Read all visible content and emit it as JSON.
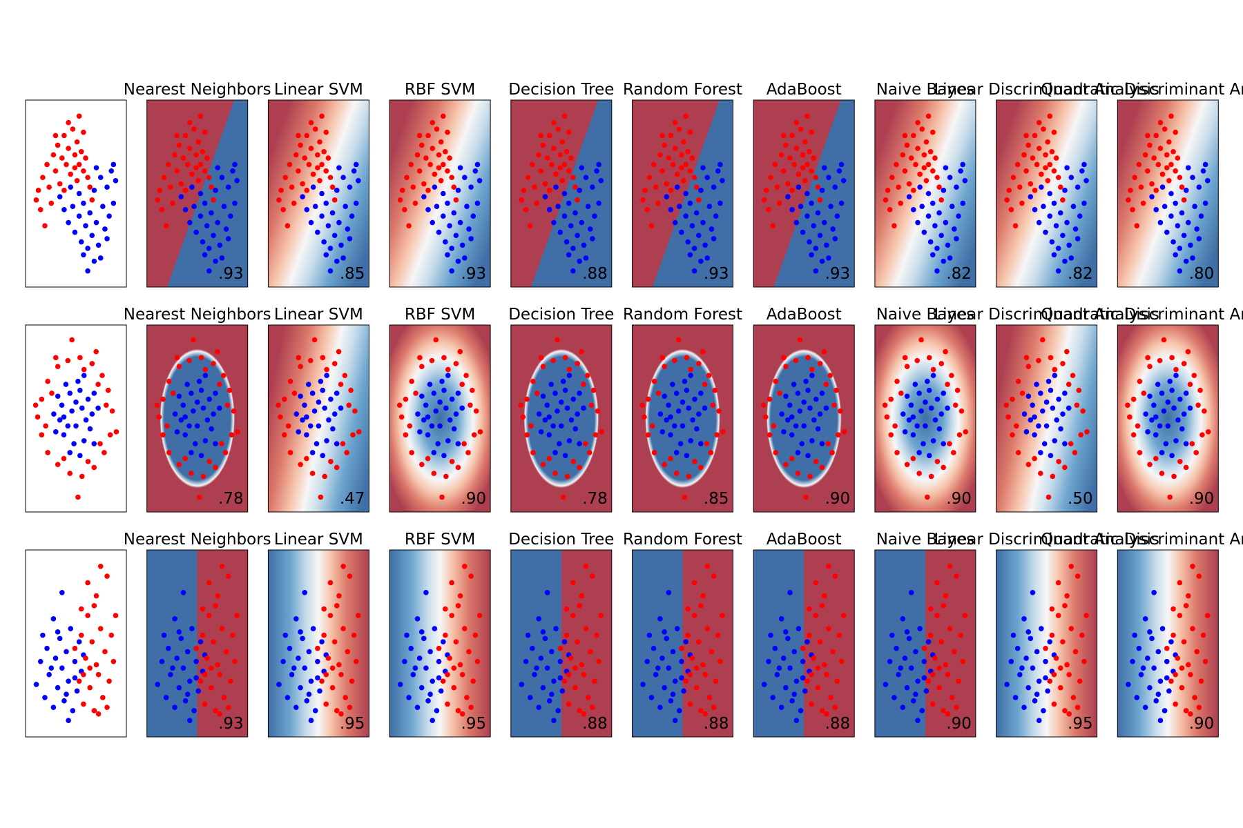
{
  "chart_data": {
    "type": "scatter",
    "classifiers": [
      "Nearest Neighbors",
      "Linear SVM",
      "RBF SVM",
      "Decision Tree",
      "Random Forest",
      "AdaBoost",
      "Naive Bayes",
      "Linear Discriminant Analysis",
      "Quadratic Discriminant Analysis"
    ],
    "datasets": [
      {
        "series": [
          {
            "color": "#ff0000",
            "x": [
              -1.7,
              -1.5,
              -1.6,
              -1.3,
              -1.2,
              -1.0,
              -0.9,
              -0.8,
              -0.6,
              -0.5,
              -0.4,
              -0.3,
              -0.1,
              0.0,
              0.1,
              0.2,
              0.3,
              0.4,
              0.5,
              0.6,
              0.7,
              0.2,
              -0.2,
              -1.1,
              -1.4,
              -0.7,
              0.0,
              -0.9,
              0.4,
              0.8,
              -1.8,
              -0.3,
              0.1,
              -0.5
            ],
            "y": [
              0.2,
              0.6,
              -0.4,
              1.0,
              0.3,
              1.3,
              0.8,
              1.6,
              1.2,
              1.9,
              1.0,
              1.5,
              2.1,
              1.3,
              1.7,
              1.0,
              1.4,
              0.8,
              1.2,
              0.6,
              0.3,
              2.5,
              0.7,
              -0.2,
              -0.9,
              0.4,
              0.9,
              1.9,
              2.0,
              -0.1,
              -0.1,
              2.3,
              0.5,
              0.2
            ]
          },
          {
            "color": "#0000ff",
            "x": [
              -0.7,
              -0.5,
              -0.3,
              -0.1,
              0.0,
              0.2,
              0.3,
              0.4,
              0.5,
              0.6,
              0.7,
              0.8,
              0.9,
              1.0,
              1.1,
              1.2,
              1.3,
              1.4,
              1.5,
              1.6,
              1.7,
              1.8,
              1.9,
              1.2,
              0.9,
              0.6,
              1.5,
              -0.2,
              0.2,
              1.0,
              1.8,
              0.4
            ],
            "y": [
              0.0,
              -0.4,
              -0.8,
              -0.3,
              -1.1,
              -0.6,
              -1.4,
              -0.2,
              -0.9,
              -1.6,
              -0.5,
              -1.2,
              0.2,
              -0.8,
              -1.5,
              0.6,
              -0.3,
              -1.0,
              0.3,
              -0.6,
              0.8,
              -0.2,
              0.5,
              -1.9,
              -2.0,
              -2.3,
              -1.3,
              0.3,
              0.1,
              0.9,
              1.0,
              -1.8
            ]
          }
        ],
        "scores": [
          0.93,
          0.85,
          0.93,
          0.88,
          0.93,
          0.93,
          0.82,
          0.82,
          0.8
        ],
        "value_labels": [
          ".93",
          ".85",
          ".93",
          ".88",
          ".93",
          ".93",
          ".82",
          ".82",
          ".80"
        ]
      },
      {
        "series": [
          {
            "color": "#ff0000",
            "x": [
              1.8,
              1.6,
              1.3,
              0.8,
              0.2,
              -0.4,
              -0.9,
              -1.4,
              -1.7,
              -1.9,
              -1.7,
              -1.4,
              -0.9,
              -0.3,
              0.3,
              0.9,
              1.4,
              1.7,
              1.5,
              1.1,
              -1.2,
              -1.5,
              -0.6,
              0.6,
              1.2,
              0.4,
              -0.2,
              0.1,
              -1.0,
              1.0,
              2.0,
              -2.0
            ],
            "y": [
              0.2,
              0.9,
              1.4,
              1.8,
              2.0,
              1.9,
              1.7,
              1.2,
              0.6,
              0.0,
              -0.6,
              -1.2,
              -1.6,
              -1.9,
              -2.0,
              -1.7,
              -1.2,
              -0.6,
              0.4,
              1.1,
              0.8,
              -0.3,
              -1.4,
              -1.5,
              -0.9,
              1.6,
              2.6,
              -2.7,
              2.0,
              2.2,
              -0.5,
              0.4
            ]
          },
          {
            "color": "#0000ff",
            "x": [
              0.8,
              0.6,
              0.2,
              -0.3,
              -0.7,
              -0.8,
              -0.6,
              -0.1,
              0.4,
              0.7,
              0.3,
              -0.2,
              0.0,
              0.5,
              -0.4,
              0.1,
              -0.5,
              0.9,
              -0.9,
              -1.0,
              0.2,
              0.9,
              -0.3,
              1.1,
              -1.1,
              0.4,
              0.0,
              -0.6
            ],
            "y": [
              0.1,
              0.6,
              0.9,
              0.8,
              0.4,
              -0.1,
              -0.6,
              -0.9,
              -0.8,
              -0.4,
              0.3,
              0.2,
              -0.3,
              -0.1,
              -0.3,
              1.2,
              1.1,
              0.8,
              0.7,
              -0.5,
              -1.3,
              -0.9,
              -1.2,
              0.3,
              0.1,
              1.4,
              0.5,
              0.0
            ]
          }
        ],
        "scores": [
          0.78,
          0.47,
          0.9,
          0.78,
          0.85,
          0.9,
          0.9,
          0.5,
          0.9
        ],
        "value_labels": [
          ".78",
          ".47",
          ".90",
          ".78",
          ".85",
          ".90",
          ".90",
          ".50",
          ".90"
        ]
      },
      {
        "series": [
          {
            "color": "#0000ff",
            "x": [
              -1.8,
              -1.6,
              -1.4,
              -1.3,
              -1.2,
              -1.0,
              -1.0,
              -0.9,
              -0.8,
              -0.7,
              -0.6,
              -0.5,
              -0.4,
              -0.3,
              -0.2,
              -0.1,
              0.0,
              0.1,
              0.2,
              0.3,
              -0.6,
              -1.5,
              -0.3,
              0.4,
              -1.1,
              -0.8,
              0.0,
              -0.4
            ],
            "y": [
              -0.5,
              0.2,
              -0.9,
              0.6,
              -0.2,
              1.5,
              -1.2,
              0.3,
              -0.6,
              0.9,
              0.0,
              -1.0,
              0.5,
              -0.4,
              1.2,
              -1.3,
              0.2,
              -0.7,
              0.8,
              -0.1,
              2.3,
              1.0,
              -1.6,
              0.4,
              0.0,
              1.1,
              -0.3,
              -0.8
            ]
          },
          {
            "color": "#ff0000",
            "x": [
              0.0,
              0.2,
              0.3,
              0.4,
              0.5,
              0.6,
              0.7,
              0.8,
              0.9,
              1.0,
              1.0,
              1.1,
              1.2,
              1.3,
              1.4,
              1.5,
              1.6,
              1.7,
              1.8,
              0.6,
              1.2,
              0.9,
              1.5,
              0.4,
              1.1,
              0.7,
              1.9,
              0.3
            ],
            "y": [
              0.6,
              -0.4,
              1.0,
              -1.1,
              0.3,
              1.6,
              -0.6,
              0.8,
              -1.3,
              0.1,
              2.2,
              -0.2,
              1.2,
              -0.9,
              0.5,
              2.8,
              -0.4,
              1.0,
              0.2,
              2.6,
              3.1,
              1.9,
              -1.2,
              -0.2,
              -1.4,
              0.0,
              1.6,
              1.8
            ]
          }
        ],
        "scores": [
          0.93,
          0.95,
          0.95,
          0.88,
          0.88,
          0.88,
          0.9,
          0.95,
          0.9
        ],
        "value_labels": [
          ".93",
          ".95",
          ".95",
          ".88",
          ".88",
          ".88",
          ".90",
          ".95",
          ".90"
        ]
      }
    ]
  }
}
